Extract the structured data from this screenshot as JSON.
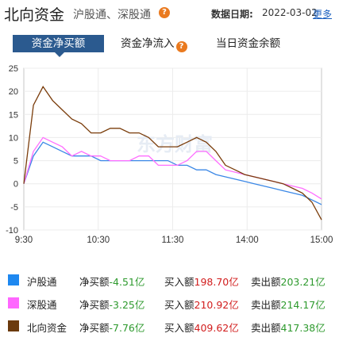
{
  "header": {
    "title": "北向资金",
    "subtitle": "沪股通、深股通",
    "date_label": "数据日期:",
    "date_value": "2022-03-02",
    "more_label": "更多"
  },
  "tabs": [
    {
      "label": "资金净买额",
      "active": true
    },
    {
      "label": "资金净流入",
      "active": false
    },
    {
      "label": "当日资金余额",
      "active": false
    }
  ],
  "watermark": "东方财富",
  "chart_data": {
    "type": "line",
    "x_ticks": [
      "9:30",
      "10:30",
      "11:30",
      "14:00",
      "15:00"
    ],
    "y_ticks": [
      25,
      20,
      15,
      10,
      5,
      0,
      -5,
      -10
    ],
    "ylim": [
      -10,
      25
    ],
    "grid": true,
    "series": [
      {
        "name": "沪股通",
        "color": "#3a87e6",
        "values": [
          0,
          6,
          9,
          8,
          7,
          6,
          6,
          6,
          5,
          5,
          5,
          5,
          5,
          5,
          5,
          5,
          4,
          4,
          3,
          3,
          2,
          1.5,
          1,
          0.5,
          0,
          -0.5,
          -1,
          -1.5,
          -2,
          -2.5,
          -3.5,
          -4.5
        ]
      },
      {
        "name": "深股通",
        "color": "#ff6eff",
        "values": [
          0,
          7,
          10,
          9,
          8,
          6,
          7,
          6,
          6,
          5,
          5,
          5,
          6,
          6,
          4,
          4,
          4,
          5,
          7,
          7,
          5,
          3,
          2.5,
          2,
          1.5,
          1,
          0.5,
          0,
          -0.5,
          -1,
          -2,
          -3.3
        ]
      },
      {
        "name": "北向资金",
        "color": "#7a3c0a",
        "values": [
          0,
          17,
          21,
          18,
          16,
          14,
          13,
          11,
          11,
          12,
          12,
          11,
          11,
          10,
          8,
          8,
          8,
          9,
          10,
          9,
          7,
          4,
          3,
          2,
          1.5,
          1,
          0.5,
          0,
          -1,
          -2,
          -4,
          -7.8
        ]
      }
    ]
  },
  "legend": [
    {
      "name": "沪股通",
      "color": "#1e88f0",
      "net_label": "净买额",
      "net_value": "-4.51亿",
      "buy_label": "买入额",
      "buy_value": "198.70亿",
      "sell_label": "卖出额",
      "sell_value": "203.21亿"
    },
    {
      "name": "深股通",
      "color": "#ff66ff",
      "net_label": "净买额",
      "net_value": "-3.25亿",
      "buy_label": "买入额",
      "buy_value": "210.92亿",
      "sell_label": "卖出额",
      "sell_value": "214.17亿"
    },
    {
      "name": "北向资金",
      "color": "#6b3a0e",
      "net_label": "净买额",
      "net_value": "-7.76亿",
      "buy_label": "买入额",
      "buy_value": "409.62亿",
      "sell_label": "卖出额",
      "sell_value": "417.38亿"
    }
  ]
}
